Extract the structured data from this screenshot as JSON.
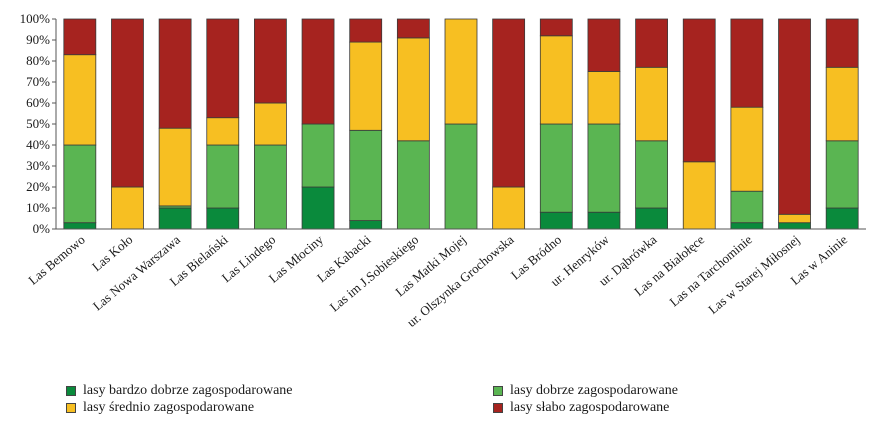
{
  "chart_data": {
    "type": "bar",
    "stacked": true,
    "percent": true,
    "categories": [
      "Las Bemowo",
      "Las Koło",
      "Las Nowa Warszawa",
      "Las Bielański",
      "Las Lindego",
      "Las Młociny",
      "Las Kabacki",
      "Las im J.Sobieskiego",
      "Las Matki Mojej",
      "ur. Olszynka Grochowska",
      "Las Bródno",
      "ur. Henryków",
      "ur. Dąbrówka",
      "Las na Białołęce",
      "Las na Tarchominie",
      "Las w Starej Miłosnej",
      "Las w Aninie"
    ],
    "series": [
      {
        "name": "lasy bardzo dobrze zagospodarowane",
        "color": "#0a8a3c",
        "values": [
          3,
          0,
          10,
          10,
          0,
          20,
          4,
          0,
          0,
          0,
          8,
          8,
          10,
          0,
          3,
          3,
          10
        ]
      },
      {
        "name": "lasy dobrze zagospodarowane",
        "color": "#5ab552",
        "values": [
          37,
          0,
          1,
          30,
          40,
          30,
          43,
          42,
          50,
          0,
          42,
          42,
          32,
          0,
          15,
          0,
          32
        ]
      },
      {
        "name": "lasy średnio zagospodarowane",
        "color": "#f7bf22",
        "values": [
          43,
          20,
          37,
          13,
          20,
          0,
          42,
          49,
          50,
          20,
          42,
          25,
          35,
          32,
          40,
          4,
          35
        ]
      },
      {
        "name": "lasy słabo zagospodarowane",
        "color": "#a6231f",
        "values": [
          17,
          80,
          52,
          47,
          40,
          50,
          11,
          9,
          0,
          80,
          8,
          25,
          23,
          68,
          42,
          93,
          23
        ]
      }
    ],
    "y_ticks": [
      "0%",
      "10%",
      "20%",
      "30%",
      "40%",
      "50%",
      "60%",
      "70%",
      "80%",
      "90%",
      "100%"
    ],
    "ylim": [
      0,
      100
    ],
    "legend_position": "bottom",
    "grid": false
  }
}
